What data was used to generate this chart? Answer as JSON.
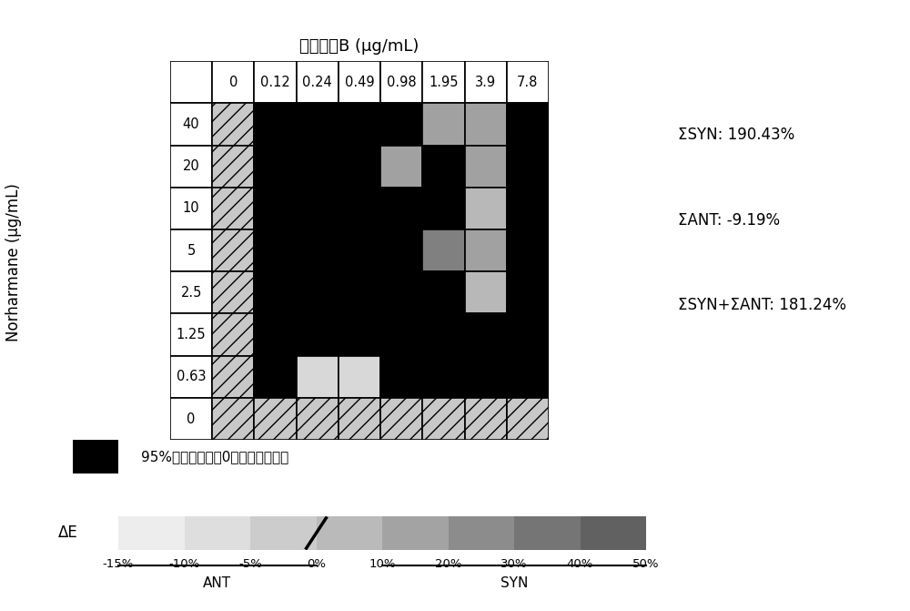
{
  "title_x": "多粘菌素B (μg/mL)",
  "ylabel": "Norharmane (μg/mL)",
  "x_labels": [
    "0",
    "0.12",
    "0.24",
    "0.49",
    "0.98",
    "1.95",
    "3.9",
    "7.8"
  ],
  "y_labels": [
    "40",
    "20",
    "10",
    "5",
    "2.5",
    "1.25",
    "0.63",
    "0"
  ],
  "sum_syn": "ΣSYN: 190.43%",
  "sum_ant": "ΣANT: -9.19%",
  "sum_total": "ΣSYN+ΣANT: 181.24%",
  "legend_black_text": "95%置信区间包含0，无统计学意义",
  "colorbar_labels": [
    "-15%",
    "-10%",
    "-5%",
    "0%",
    "10%",
    "20%",
    "30%",
    "40%",
    "50%"
  ],
  "colorbar_ant_label": "ANT",
  "colorbar_syn_label": "SYN",
  "delta_e_label": "ΔE",
  "grid_values": [
    [
      null,
      null,
      null,
      null,
      null,
      20,
      20,
      null
    ],
    [
      null,
      null,
      null,
      null,
      20,
      null,
      20,
      null
    ],
    [
      null,
      null,
      null,
      null,
      null,
      null,
      10,
      null
    ],
    [
      null,
      null,
      null,
      null,
      null,
      30,
      20,
      null
    ],
    [
      null,
      null,
      null,
      null,
      null,
      null,
      10,
      null
    ],
    [
      null,
      null,
      null,
      null,
      null,
      null,
      null,
      null
    ],
    [
      null,
      null,
      -5,
      -5,
      null,
      null,
      null,
      null
    ],
    [
      null,
      null,
      null,
      null,
      null,
      null,
      null,
      null
    ]
  ],
  "background": "#ffffff",
  "hatch_gray": "#c8c8c8"
}
